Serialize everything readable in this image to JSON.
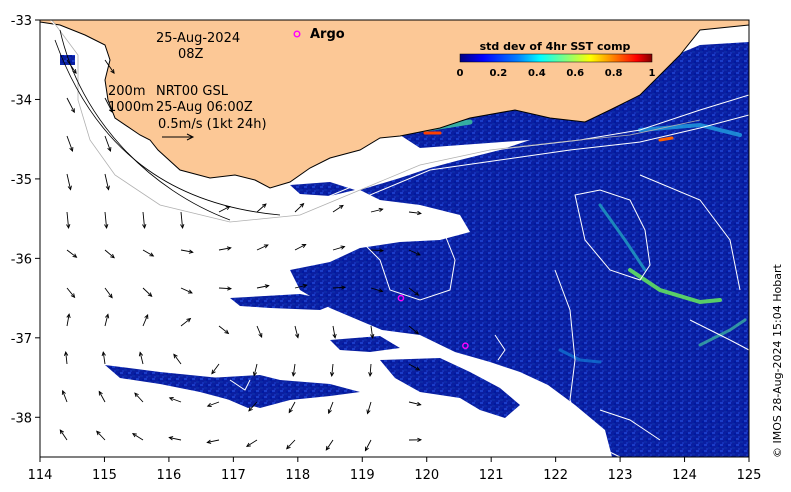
{
  "map": {
    "date": "25-Aug-2024",
    "hour": "08Z",
    "legend": {
      "depth_line": "200m",
      "contour_line": "1000m",
      "product": "NRT00 GSL",
      "velocity_time": "25-Aug 06:00Z",
      "scale_vector": "0.5m/s (1kt 24h)"
    },
    "argo_label": "Argo",
    "colorbar": {
      "title": "std dev of 4hr SST comp",
      "ticks": [
        "0",
        "0.2",
        "0.4",
        "0.6",
        "0.8",
        "1"
      ],
      "range": [
        0,
        1
      ],
      "colors": [
        "#000080",
        "#0000ff",
        "#0080ff",
        "#00ffff",
        "#80ff80",
        "#ffff00",
        "#ff8000",
        "#ff0000",
        "#800000"
      ]
    },
    "credit": "© IMOS 28-Aug-2024 15:04 Hobart",
    "lon_ticks": [
      "114",
      "115",
      "116",
      "117",
      "118",
      "119",
      "120",
      "121",
      "122",
      "123",
      "124",
      "125"
    ],
    "lat_ticks": [
      "-33",
      "-34",
      "-35",
      "-36",
      "-37",
      "-38"
    ],
    "lon_range": [
      114,
      125
    ],
    "lat_range": [
      -38.5,
      -33
    ],
    "argo_floats": [
      {
        "lon": 119.6,
        "lat": -36.5
      },
      {
        "lon": 120.6,
        "lat": -37.1
      }
    ],
    "colors": {
      "land": "#fcc896",
      "ocean_data": "#0a1ea0",
      "coast": "#000000",
      "argo_marker": "#ff00ff"
    }
  }
}
